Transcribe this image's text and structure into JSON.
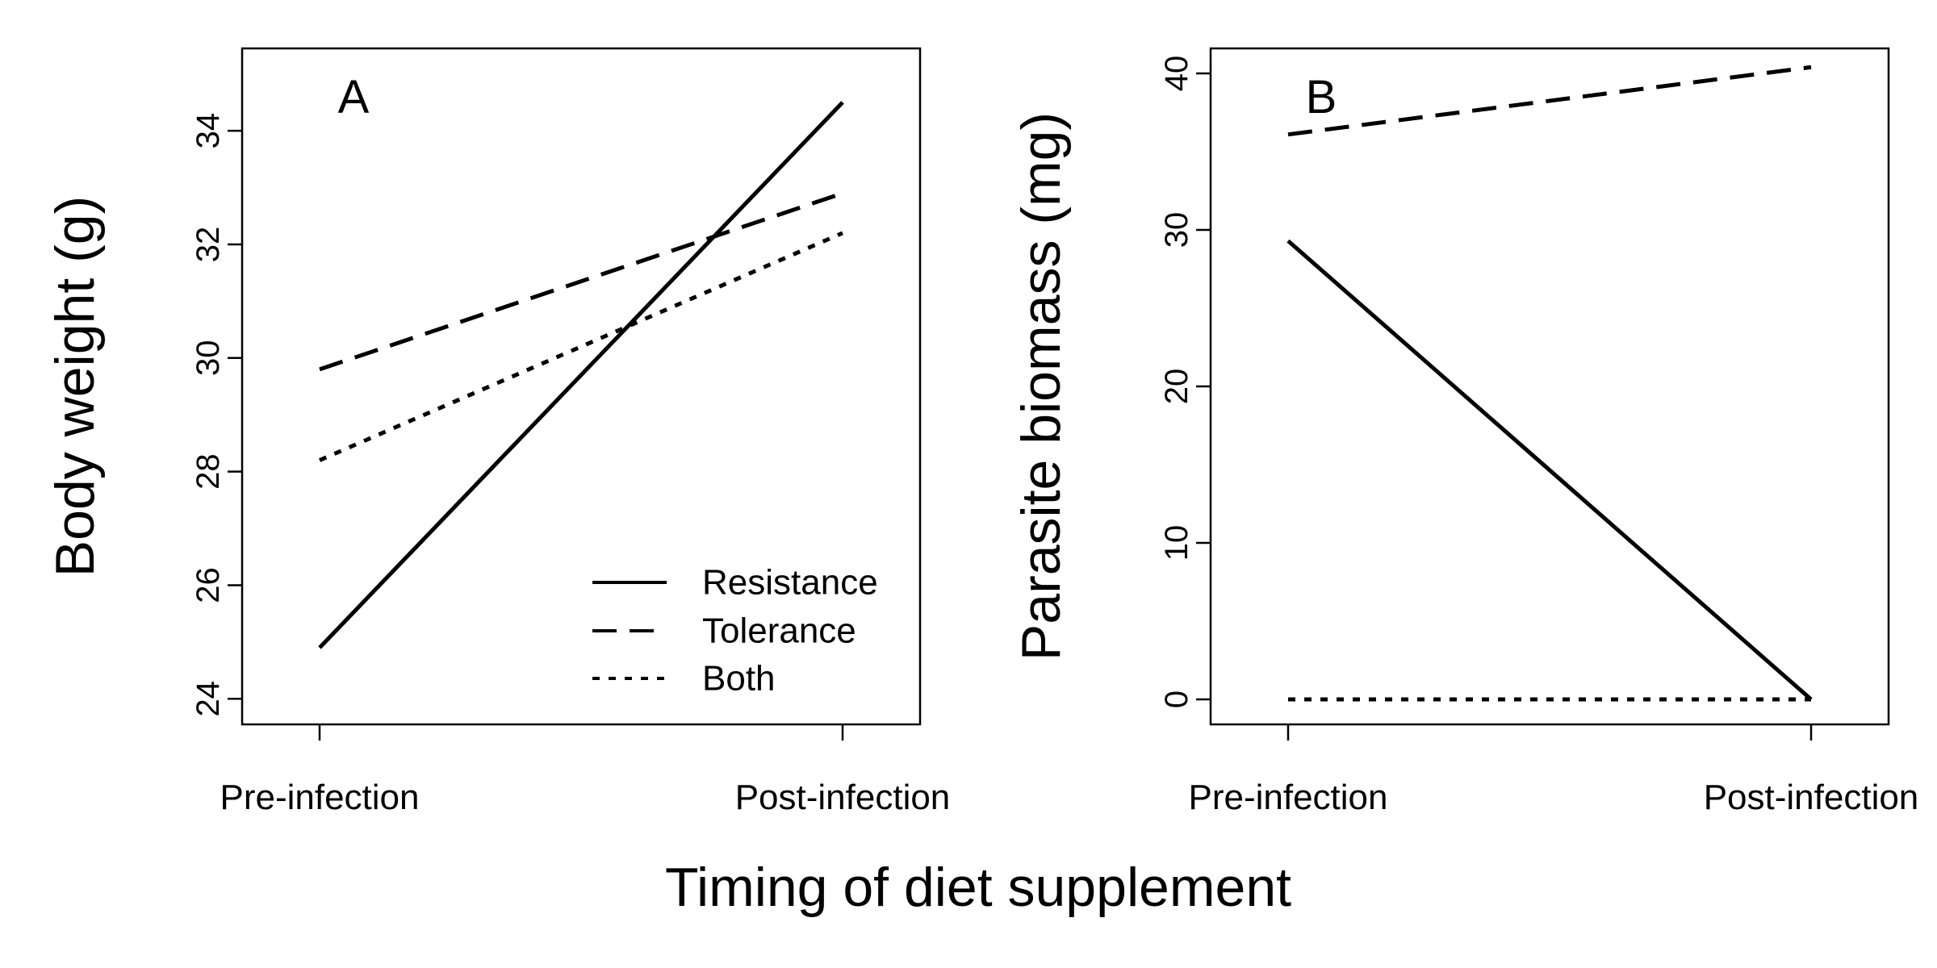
{
  "figure": {
    "xlabel": "Timing of diet supplement"
  },
  "chart_data": [
    {
      "type": "line",
      "panel_label": "A",
      "categories": [
        "Pre-infection",
        "Post-infection"
      ],
      "ylabel": "Body weight (g)",
      "ylim": [
        23.55,
        35.45
      ],
      "yticks": [
        24,
        26,
        28,
        30,
        32,
        34
      ],
      "grid": false,
      "legend_position": "bottom-right",
      "series": [
        {
          "name": "Resistance",
          "line_style": "solid",
          "values": [
            24.9,
            34.5
          ]
        },
        {
          "name": "Tolerance",
          "line_style": "dashed",
          "values": [
            29.8,
            32.9
          ]
        },
        {
          "name": "Both",
          "line_style": "dotted",
          "values": [
            28.2,
            32.2
          ]
        }
      ]
    },
    {
      "type": "line",
      "panel_label": "B",
      "categories": [
        "Pre-infection",
        "Post-infection"
      ],
      "ylabel": "Parasite biomass (mg)",
      "ylim": [
        -1.6,
        41.6
      ],
      "yticks": [
        0,
        10,
        20,
        30,
        40
      ],
      "grid": false,
      "series": [
        {
          "name": "Resistance",
          "line_style": "solid",
          "values": [
            29.3,
            0
          ]
        },
        {
          "name": "Tolerance",
          "line_style": "dashed",
          "values": [
            36.1,
            40.4
          ]
        },
        {
          "name": "Both",
          "line_style": "dotted",
          "values": [
            0,
            0
          ]
        }
      ]
    }
  ]
}
